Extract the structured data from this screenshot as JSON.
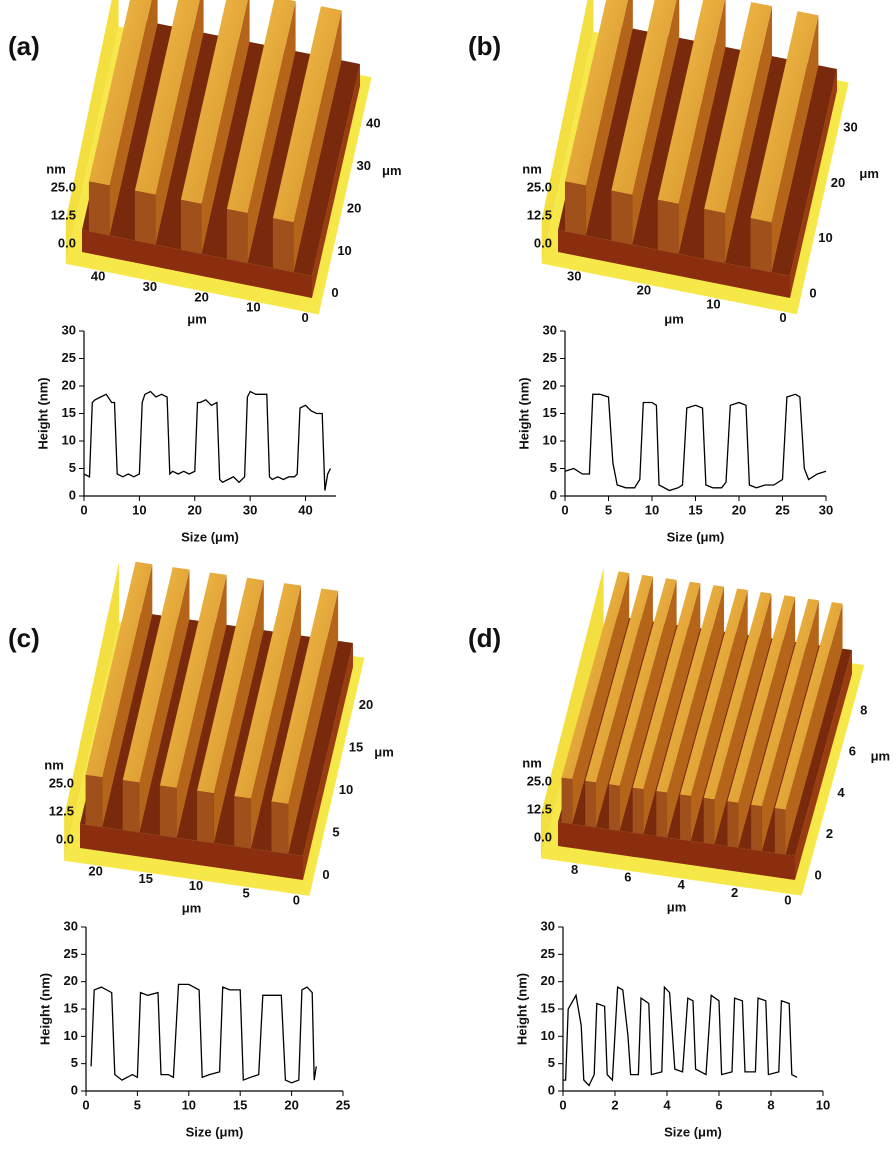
{
  "panels": [
    {
      "label": "(a)",
      "afm": {
        "z_unit": "nm",
        "z_ticks": [
          "0.0",
          "12.5",
          "25.0"
        ],
        "x_unit": "μm",
        "x_ticks": [
          "40",
          "30",
          "20",
          "10",
          "0"
        ],
        "y_unit": "μm",
        "y_ticks": [
          "0",
          "10",
          "20",
          "30",
          "40"
        ]
      }
    },
    {
      "label": "(b)",
      "afm": {
        "z_unit": "nm",
        "z_ticks": [
          "0.0",
          "12.5",
          "25.0"
        ],
        "x_unit": "μm",
        "x_ticks": [
          "30",
          "20",
          "10",
          "0"
        ],
        "y_unit": "μm",
        "y_ticks": [
          "0",
          "10",
          "20",
          "30"
        ]
      }
    },
    {
      "label": "(c)",
      "afm": {
        "z_unit": "nm",
        "z_ticks": [
          "0.0",
          "12.5",
          "25.0"
        ],
        "x_unit": "μm",
        "x_ticks": [
          "20",
          "15",
          "10",
          "5",
          "0"
        ],
        "y_unit": "μm",
        "y_ticks": [
          "0",
          "5",
          "10",
          "15",
          "20"
        ]
      }
    },
    {
      "label": "(d)",
      "afm": {
        "z_unit": "nm",
        "z_ticks": [
          "0.0",
          "12.5",
          "25.0"
        ],
        "x_unit": "μm",
        "x_ticks": [
          "8",
          "6",
          "4",
          "2",
          "0"
        ],
        "y_unit": "μm",
        "y_ticks": [
          "0",
          "2",
          "4",
          "6",
          "8"
        ]
      }
    }
  ],
  "chart_data": [
    {
      "type": "line",
      "x_label": "Size (μm)",
      "y_label": "Height (nm)",
      "color": "#000000",
      "xlim": [
        0,
        45.5
      ],
      "xticks": [
        0,
        10,
        20,
        30,
        40
      ],
      "ylim": [
        0,
        30
      ],
      "yticks": [
        0,
        5,
        10,
        15,
        20,
        25,
        30
      ],
      "x": [
        0,
        1,
        1.5,
        2,
        3,
        4,
        5,
        5.5,
        6,
        7,
        8,
        9,
        10,
        10.5,
        11,
        12,
        13,
        14,
        15,
        15.5,
        16,
        17,
        18,
        19,
        20,
        20.5,
        21,
        22,
        23,
        24,
        24.5,
        25,
        26,
        27,
        28,
        29,
        29.5,
        30,
        31,
        32,
        33,
        33.5,
        34,
        35,
        36,
        37,
        38,
        38.5,
        39,
        40,
        41,
        42,
        43,
        43.5,
        44,
        44.5
      ],
      "values": [
        4,
        3.5,
        17,
        17.5,
        18,
        18.5,
        17,
        17,
        4,
        3.5,
        4,
        3.5,
        4,
        17,
        18.5,
        19,
        18,
        18.5,
        18,
        4,
        4.5,
        4,
        4.5,
        4,
        4.5,
        17,
        17,
        17.5,
        16.5,
        17,
        3,
        2.5,
        3,
        3.5,
        2.5,
        3.5,
        18,
        19,
        18.5,
        18.5,
        18.5,
        3.5,
        3,
        3.5,
        3,
        3.5,
        3.5,
        4,
        16,
        16.5,
        15.5,
        15,
        15,
        1,
        4,
        5
      ]
    },
    {
      "type": "line",
      "x_label": "Size (μm)",
      "y_label": "Height (nm)",
      "color": "#000000",
      "xlim": [
        0,
        30
      ],
      "xticks": [
        0,
        5,
        10,
        15,
        20,
        25,
        30
      ],
      "ylim": [
        0,
        30
      ],
      "yticks": [
        0,
        5,
        10,
        15,
        20,
        25,
        30
      ],
      "x": [
        0,
        1,
        2,
        2.8,
        3.2,
        4,
        5,
        5.5,
        6,
        7,
        8,
        8.6,
        9,
        10,
        10.5,
        10.8,
        12,
        13,
        13.5,
        14,
        15,
        15.8,
        16.2,
        17,
        18,
        18.5,
        19,
        20,
        20.8,
        21.2,
        22,
        23,
        24,
        25,
        25.5,
        26.5,
        27,
        27.5,
        28,
        29,
        30
      ],
      "values": [
        4.5,
        5,
        4,
        4,
        18.5,
        18.5,
        18,
        6,
        2,
        1.5,
        1.5,
        3,
        17,
        17,
        16.5,
        2,
        1,
        1.5,
        2,
        16,
        16.5,
        16,
        2,
        1.5,
        1.5,
        2.5,
        16.5,
        17,
        16.5,
        2,
        1.5,
        2,
        2,
        3,
        18,
        18.5,
        18,
        5,
        3,
        4,
        4.5
      ]
    },
    {
      "type": "line",
      "x_label": "Size (μm)",
      "y_label": "Height (nm)",
      "color": "#000000",
      "xlim": [
        0,
        25
      ],
      "xticks": [
        0,
        5,
        10,
        15,
        20,
        25
      ],
      "ylim": [
        0,
        30
      ],
      "yticks": [
        0,
        5,
        10,
        15,
        20,
        25,
        30
      ],
      "x": [
        0.5,
        0.8,
        1.5,
        2.5,
        2.8,
        3.5,
        4.5,
        5,
        5.3,
        6,
        7,
        7.3,
        8,
        8.5,
        9,
        10,
        11,
        11.3,
        12,
        13,
        13.3,
        14,
        15,
        15.3,
        16,
        16.8,
        17.2,
        18,
        19,
        19.4,
        20,
        20.7,
        21,
        21.5,
        22,
        22.2,
        22.4
      ],
      "values": [
        4.5,
        18.5,
        19,
        18,
        3,
        2,
        3,
        2.5,
        18,
        17.5,
        18,
        3,
        3,
        2.5,
        19.5,
        19.5,
        18.5,
        2.5,
        3,
        3.5,
        19,
        18.5,
        18.5,
        2,
        2.5,
        3,
        17.5,
        17.5,
        17.5,
        2,
        1.5,
        2,
        18.5,
        19,
        18,
        2,
        4.5
      ]
    },
    {
      "type": "line",
      "x_label": "Size (μm)",
      "y_label": "Height (nm)",
      "color": "#000000",
      "xlim": [
        0,
        10
      ],
      "xticks": [
        0,
        2,
        4,
        6,
        8,
        10
      ],
      "ylim": [
        0,
        30
      ],
      "yticks": [
        0,
        5,
        10,
        15,
        20,
        25,
        30
      ],
      "x": [
        0,
        0.1,
        0.2,
        0.5,
        0.7,
        0.8,
        1,
        1.2,
        1.3,
        1.6,
        1.7,
        1.9,
        2.1,
        2.3,
        2.5,
        2.6,
        2.9,
        3.0,
        3.3,
        3.4,
        3.8,
        3.9,
        4.1,
        4.3,
        4.6,
        4.8,
        5.0,
        5.1,
        5.5,
        5.7,
        6.0,
        6.1,
        6.5,
        6.6,
        6.9,
        7.0,
        7.4,
        7.5,
        7.8,
        7.9,
        8.3,
        8.4,
        8.7,
        8.8,
        9.0
      ],
      "values": [
        2,
        2,
        15,
        17.5,
        12,
        2,
        1,
        3,
        16,
        15.5,
        3,
        2,
        19,
        18.5,
        10,
        3,
        3,
        17,
        16,
        3,
        3.5,
        19,
        18,
        4,
        3.5,
        17,
        16.5,
        4,
        3,
        17.5,
        16.5,
        3,
        3.5,
        17,
        16.5,
        3.5,
        3.5,
        17,
        16.5,
        3,
        3.5,
        16.5,
        16,
        3,
        2.5
      ]
    }
  ]
}
